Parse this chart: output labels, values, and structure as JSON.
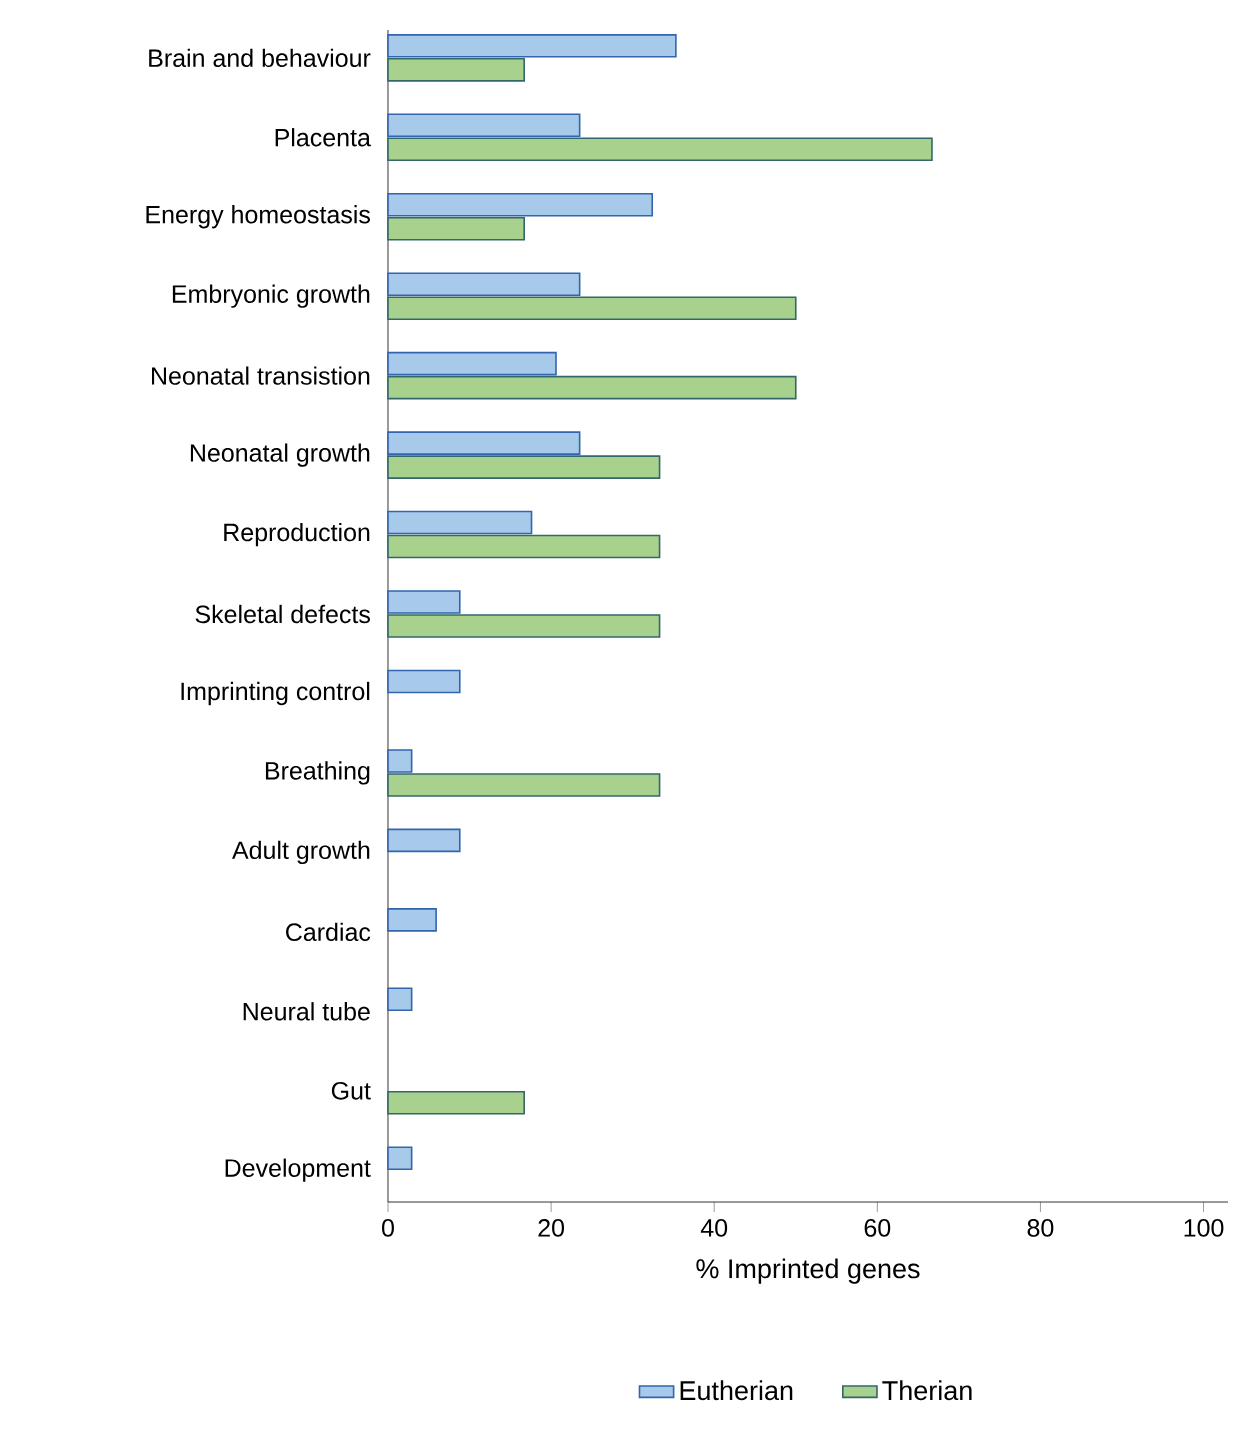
{
  "chart_data": {
    "type": "bar",
    "orientation": "horizontal",
    "categories": [
      "Brain and behaviour",
      "Placenta",
      "Energy homeostasis",
      "Embryonic growth",
      "Neonatal transistion",
      "Neonatal growth",
      "Reproduction",
      "Skeletal defects",
      "Imprinting control",
      "Breathing",
      "Adult growth",
      "Cardiac",
      "Neural tube",
      "Gut",
      "Development"
    ],
    "series": [
      {
        "name": "Eutherian",
        "color": "#a7c9ea",
        "values": [
          35.3,
          23.5,
          32.4,
          23.5,
          20.6,
          23.5,
          17.6,
          8.8,
          8.8,
          2.9,
          8.8,
          5.9,
          2.9,
          null,
          2.9
        ]
      },
      {
        "name": "Therian",
        "color": "#a9d18e",
        "values": [
          16.7,
          66.7,
          16.7,
          50,
          50,
          33.3,
          33.3,
          33.3,
          null,
          33.3,
          null,
          null,
          null,
          16.7,
          null
        ]
      }
    ],
    "xlim": [
      0,
      103
    ],
    "xticks": [
      0,
      20,
      40,
      60,
      80,
      100
    ],
    "xlabel": "% Imprinted genes",
    "legend": "bottom"
  }
}
